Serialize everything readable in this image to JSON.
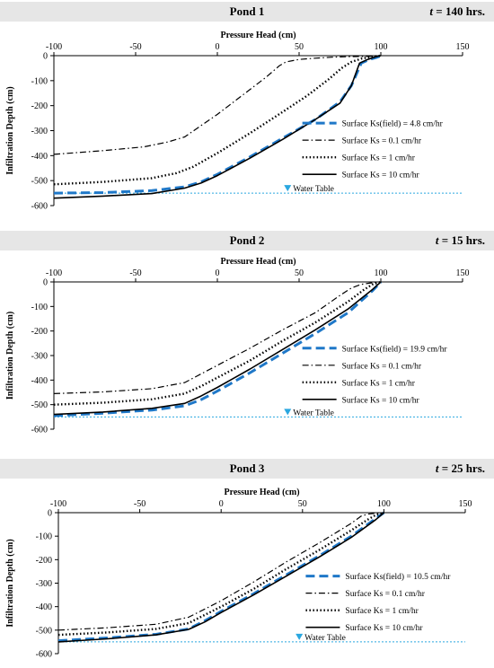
{
  "panels": [
    {
      "title": "Pond 1",
      "time_var": "t",
      "time_value": "= 140 hrs."
    },
    {
      "title": "Pond 2",
      "time_var": "t",
      "time_value": "= 15 hrs."
    },
    {
      "title": "Pond 3",
      "time_var": "t",
      "time_value": "= 25 hrs."
    }
  ],
  "colors": {
    "field_series": "#1f78c8",
    "other_series": "#000000",
    "water_table": "#2aa7e0",
    "band": "#e6e6e6"
  },
  "chart_data": [
    {
      "type": "line",
      "title": "Pond 1",
      "xlabel": "Pressure Head (cm)",
      "ylabel": "Infiltration Depth (cm)",
      "xlim": [
        -100,
        150
      ],
      "ylim": [
        -600,
        0
      ],
      "xticks": [
        -100,
        -50,
        0,
        50,
        100,
        150
      ],
      "yticks": [
        0,
        -100,
        -200,
        -300,
        -400,
        -500,
        -600
      ],
      "legend_position": "right",
      "water_table": {
        "label": "Water Table",
        "y": -550,
        "marker_x": 43
      },
      "series": [
        {
          "name": "Surface Ks(field) = 4.8 cm/hr",
          "style": "dashed-blue",
          "x": [
            -100,
            -70,
            -40,
            -20,
            -10,
            0,
            20,
            40,
            60,
            75,
            82,
            88,
            93,
            97,
            99,
            100
          ],
          "y": [
            -550,
            -548,
            -540,
            -525,
            -505,
            -475,
            -405,
            -330,
            -255,
            -185,
            -120,
            -30,
            -15,
            -8,
            -3,
            0
          ]
        },
        {
          "name": "Surface Ks = 0.1 cm/hr",
          "style": "dashdot",
          "x": [
            -100,
            -70,
            -45,
            -30,
            -20,
            -10,
            0,
            10,
            20,
            30,
            38,
            42,
            50,
            60,
            70,
            80,
            90,
            95,
            98,
            100
          ],
          "y": [
            -395,
            -380,
            -365,
            -345,
            -325,
            -280,
            -235,
            -185,
            -135,
            -85,
            -40,
            -25,
            -15,
            -10,
            -6,
            -4,
            -3,
            -2,
            -1,
            0
          ]
        },
        {
          "name": "Surface Ks = 1 cm/hr",
          "style": "dotted",
          "x": [
            -100,
            -70,
            -40,
            -25,
            -15,
            0,
            20,
            40,
            55,
            68,
            76,
            82,
            88,
            93,
            96,
            100
          ],
          "y": [
            -515,
            -505,
            -490,
            -470,
            -445,
            -390,
            -310,
            -225,
            -160,
            -95,
            -50,
            -25,
            -12,
            -6,
            -3,
            0
          ]
        },
        {
          "name": "Surface Ks = 10 cm/hr",
          "style": "solid",
          "x": [
            -100,
            -70,
            -40,
            -20,
            -10,
            0,
            20,
            40,
            60,
            75,
            82,
            87,
            92,
            96,
            98,
            100
          ],
          "y": [
            -570,
            -562,
            -552,
            -530,
            -510,
            -480,
            -410,
            -335,
            -255,
            -190,
            -120,
            -30,
            -15,
            -6,
            -2,
            0
          ]
        }
      ]
    },
    {
      "type": "line",
      "title": "Pond 2",
      "xlabel": "Pressure Head (cm)",
      "ylabel": "Infiltration Depth (cm)",
      "xlim": [
        -100,
        150
      ],
      "ylim": [
        -600,
        0
      ],
      "xticks": [
        -100,
        -50,
        0,
        50,
        100,
        150
      ],
      "yticks": [
        0,
        -100,
        -200,
        -300,
        -400,
        -500,
        -600
      ],
      "legend_position": "right",
      "water_table": {
        "label": "Water Table",
        "y": -550,
        "marker_x": 43
      },
      "series": [
        {
          "name": "Surface Ks(field) = 19.9 cm/hr",
          "style": "dashed-blue",
          "x": [
            -100,
            -70,
            -40,
            -20,
            -10,
            0,
            20,
            40,
            60,
            80,
            95,
            100
          ],
          "y": [
            -545,
            -535,
            -522,
            -505,
            -480,
            -445,
            -370,
            -290,
            -210,
            -125,
            -35,
            0
          ]
        },
        {
          "name": "Surface Ks = 0.1 cm/hr",
          "style": "dashdot",
          "x": [
            -100,
            -70,
            -40,
            -20,
            -10,
            0,
            20,
            40,
            60,
            75,
            82,
            88,
            93,
            97,
            100
          ],
          "y": [
            -455,
            -448,
            -435,
            -410,
            -375,
            -340,
            -270,
            -195,
            -125,
            -55,
            -25,
            -10,
            -5,
            -2,
            0
          ]
        },
        {
          "name": "Surface Ks = 1 cm/hr",
          "style": "dotted",
          "x": [
            -100,
            -70,
            -40,
            -20,
            -10,
            0,
            20,
            40,
            60,
            80,
            90,
            95,
            100
          ],
          "y": [
            -500,
            -492,
            -478,
            -455,
            -425,
            -390,
            -320,
            -240,
            -165,
            -80,
            -30,
            -10,
            0
          ]
        },
        {
          "name": "Surface Ks = 10 cm/hr",
          "style": "solid",
          "x": [
            -100,
            -70,
            -40,
            -20,
            -10,
            0,
            20,
            40,
            60,
            80,
            95,
            100
          ],
          "y": [
            -540,
            -530,
            -515,
            -495,
            -465,
            -430,
            -355,
            -275,
            -195,
            -110,
            -30,
            0
          ]
        }
      ]
    },
    {
      "type": "line",
      "title": "Pond 3",
      "xlabel": "Pressure Head (cm)",
      "ylabel": "Infiltration Depth (cm)",
      "xlim": [
        -100,
        150
      ],
      "ylim": [
        -600,
        0
      ],
      "xticks": [
        -100,
        -50,
        0,
        50,
        100,
        150
      ],
      "yticks": [
        0,
        -100,
        -200,
        -300,
        -400,
        -500,
        -600
      ],
      "legend_position": "right",
      "water_table": {
        "label": "Water Table",
        "y": -550,
        "marker_x": 48
      },
      "series": [
        {
          "name": "Surface Ks(field) = 10.5 cm/hr",
          "style": "dashed-blue",
          "x": [
            -100,
            -70,
            -40,
            -20,
            -10,
            0,
            20,
            40,
            60,
            80,
            95,
            100
          ],
          "y": [
            -545,
            -533,
            -518,
            -495,
            -460,
            -420,
            -345,
            -265,
            -185,
            -100,
            -25,
            0
          ]
        },
        {
          "name": "Surface Ks = 0.1 cm/hr",
          "style": "dashdot",
          "x": [
            -100,
            -70,
            -40,
            -20,
            -10,
            0,
            20,
            40,
            60,
            80,
            86,
            90,
            94,
            97,
            100
          ],
          "y": [
            -500,
            -490,
            -475,
            -445,
            -410,
            -375,
            -295,
            -210,
            -130,
            -45,
            -15,
            -6,
            -3,
            -1,
            0
          ]
        },
        {
          "name": "Surface Ks = 1 cm/hr",
          "style": "dotted",
          "x": [
            -100,
            -70,
            -40,
            -20,
            -10,
            0,
            20,
            40,
            60,
            80,
            90,
            95,
            100
          ],
          "y": [
            -520,
            -510,
            -495,
            -470,
            -435,
            -400,
            -325,
            -240,
            -160,
            -75,
            -30,
            -10,
            0
          ]
        },
        {
          "name": "Surface Ks = 10 cm/hr",
          "style": "solid",
          "x": [
            -100,
            -70,
            -40,
            -20,
            -10,
            0,
            20,
            40,
            60,
            80,
            95,
            100
          ],
          "y": [
            -550,
            -537,
            -520,
            -497,
            -465,
            -425,
            -350,
            -270,
            -190,
            -105,
            -30,
            0
          ]
        }
      ]
    }
  ]
}
